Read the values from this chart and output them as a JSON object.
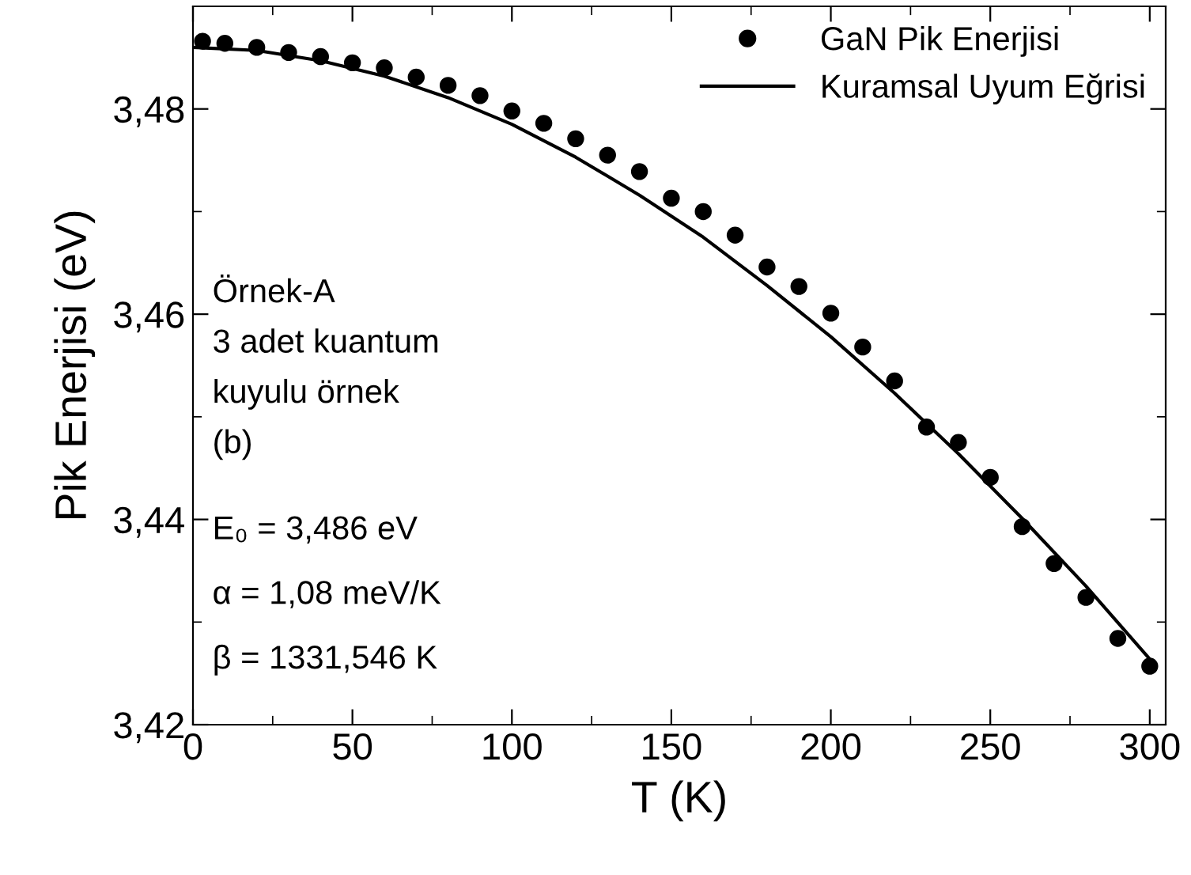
{
  "chart_data": {
    "type": "scatter",
    "xlabel": "T (K)",
    "ylabel": "Pik Enerjisi (eV)",
    "xlim": [
      0,
      305
    ],
    "ylim": [
      3.42,
      3.49
    ],
    "xticks": [
      0,
      50,
      100,
      150,
      200,
      250,
      300
    ],
    "yticks": [
      {
        "value": 3.42,
        "label": "3,42"
      },
      {
        "value": 3.44,
        "label": "3,44"
      },
      {
        "value": 3.46,
        "label": "3,46"
      },
      {
        "value": 3.48,
        "label": "3,48"
      }
    ],
    "grid": false,
    "legend": "top right",
    "marker": "circle",
    "series": [
      {
        "name": "GaN Pik Enerjisi",
        "color": "#000000",
        "x": [
          3,
          10,
          20,
          30,
          40,
          50,
          60,
          70,
          80,
          90,
          100,
          110,
          120,
          130,
          140,
          150,
          160,
          170,
          180,
          190,
          200,
          210,
          220,
          230,
          240,
          250,
          260,
          270,
          280,
          290,
          300
        ],
        "values": [
          3.4866,
          3.4864,
          3.486,
          3.4855,
          3.4851,
          3.4845,
          3.484,
          3.4831,
          3.4823,
          3.4813,
          3.4798,
          3.4786,
          3.4771,
          3.4755,
          3.4739,
          3.4713,
          3.47,
          3.4677,
          3.4646,
          3.4627,
          3.4601,
          3.4568,
          3.4535,
          3.449,
          3.4475,
          3.4441,
          3.4393,
          3.4357,
          3.4324,
          3.4284,
          3.4257
        ]
      },
      {
        "name": "Kuramsal Uyum Eğrisi",
        "type": "line",
        "color": "#000000",
        "marker": "none",
        "line_style": "solid",
        "x": [
          0,
          20,
          40,
          60,
          80,
          100,
          120,
          140,
          160,
          180,
          200,
          220,
          240,
          260,
          280,
          300
        ],
        "values": [
          3.486,
          3.4857,
          3.4847,
          3.4832,
          3.4811,
          3.4785,
          3.4753,
          3.4716,
          3.4675,
          3.4628,
          3.4578,
          3.4523,
          3.4464,
          3.4401,
          3.4335,
          3.4264
        ]
      }
    ],
    "annotations": [
      "Örnek-A",
      "3 adet kuantum",
      "kuyulu örnek",
      "(b)",
      "E₀ = 3,486 eV",
      "α = 1,08 meV/K",
      "β = 1331,546 K"
    ]
  }
}
